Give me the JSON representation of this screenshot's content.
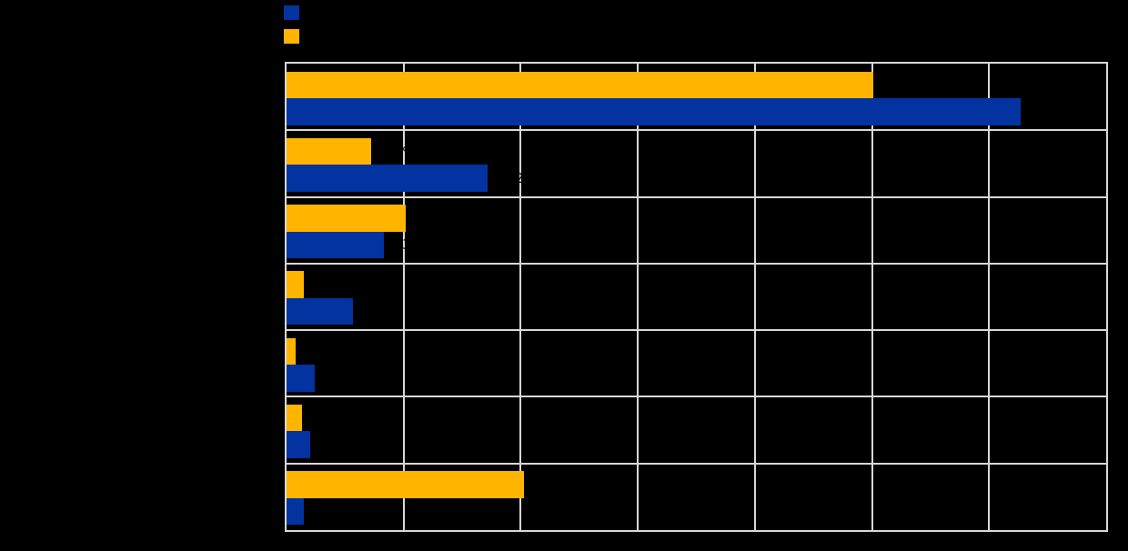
{
  "page": {
    "background_color": "#000000",
    "title": ""
  },
  "legend": {
    "items": [
      {
        "label": "",
        "color": "#0333A0"
      },
      {
        "label": "",
        "color": "#FFB400"
      }
    ]
  },
  "colors": {
    "series_blue": "#0333A0",
    "series_orange": "#FFB400",
    "gridline": "#D8D8D8",
    "text": "#000000",
    "background": "#000000"
  },
  "chart_data": {
    "type": "bar",
    "orientation": "horizontal",
    "title": "",
    "xlabel": "",
    "ylabel": "",
    "categories": [
      "",
      "",
      "",
      "",
      "",
      "",
      ""
    ],
    "series": [
      {
        "name": "blue",
        "color": "#0333A0",
        "values": [
          62.7,
          17.2,
          8.3,
          5.7,
          2.4,
          2.0,
          1.5
        ]
      },
      {
        "name": "orange",
        "color": "#FFB400",
        "values": [
          50.1,
          7.2,
          10.2,
          1.5,
          0.8,
          1.3,
          20.3
        ]
      }
    ],
    "row_order_top_to_bottom": [
      "orange",
      "blue"
    ],
    "xlim": [
      0,
      70
    ],
    "x_ticks": [
      0,
      10,
      20,
      30,
      40,
      50,
      60,
      70
    ],
    "grid": true,
    "legend_position": "top-left",
    "data_labels": true,
    "data_label_suffix": " %",
    "data_label_color": "#000000"
  }
}
